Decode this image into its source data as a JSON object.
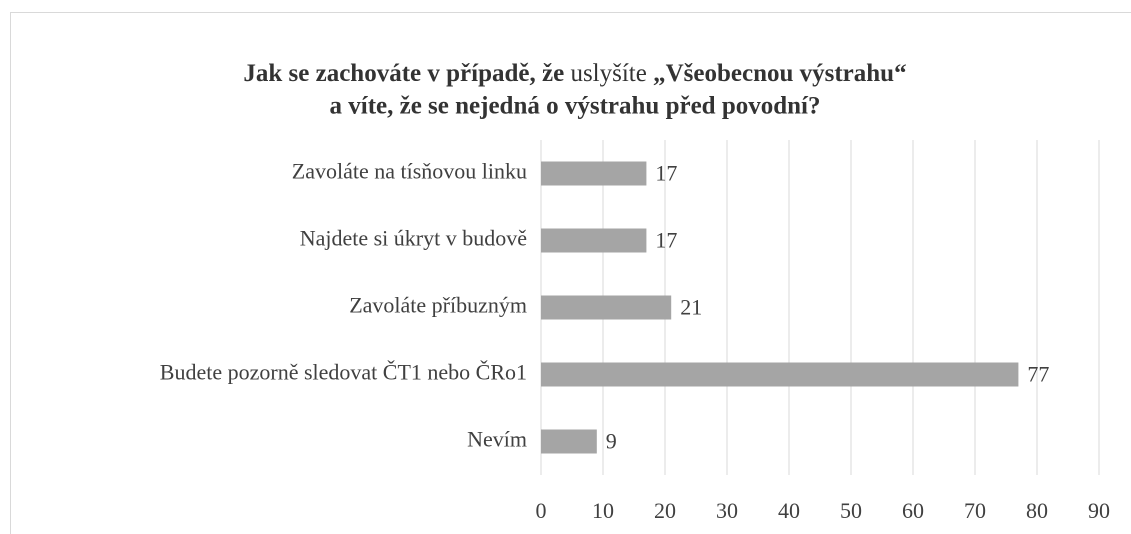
{
  "chart_data": {
    "type": "barh",
    "title": [
      "Jak se zachováte v případě, že",
      "uslyšíte",
      "„Všeobecnou výstrahu“",
      "a víte, že se nejedná o výstrahu před povodní?"
    ],
    "categories": [
      "Zavoláte na tísňovou linku",
      "Najdete si úkryt v budově",
      "Zavoláte příbuzným",
      "Budete pozorně sledovat ČT1 nebo ČRo1",
      "Nevím"
    ],
    "values": [
      17,
      17,
      21,
      77,
      9
    ],
    "color": "#a5a5a5",
    "xlim": [
      0,
      90
    ],
    "xticks": [
      0,
      10,
      20,
      30,
      40,
      50,
      60,
      70,
      80,
      90
    ],
    "grid": true
  }
}
